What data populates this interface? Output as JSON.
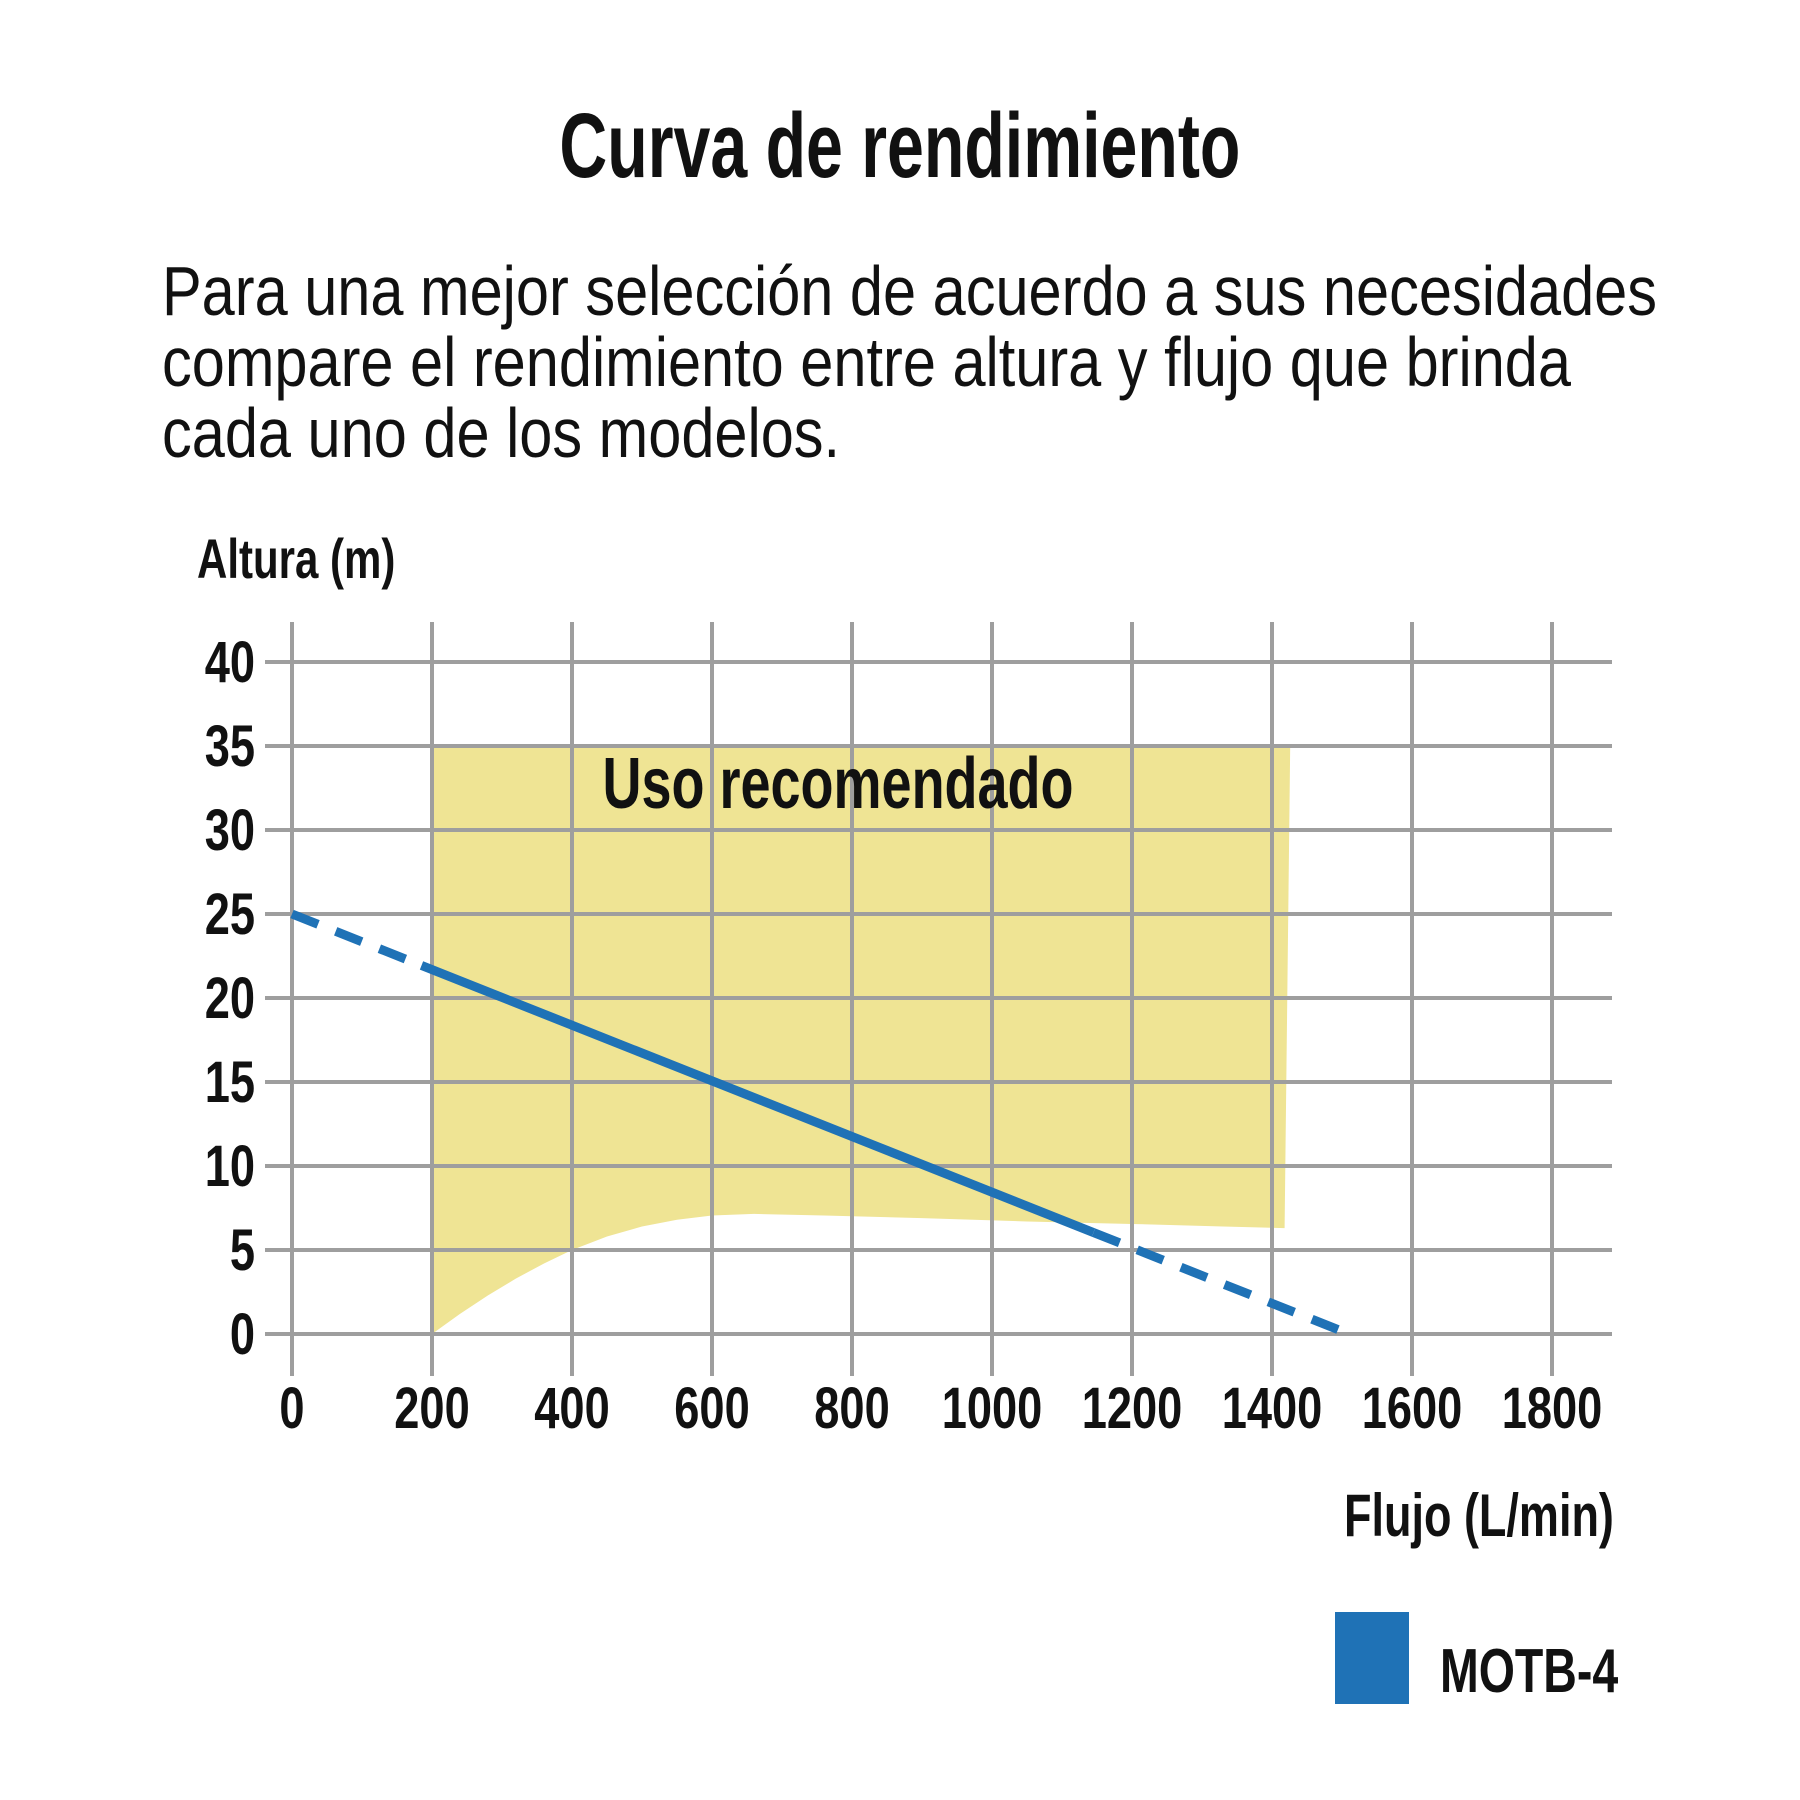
{
  "page": {
    "title": "Curva de rendimiento",
    "description_lines": [
      "Para una mejor selección de acuerdo a sus necesidades",
      "compare el rendimiento entre altura y flujo que brinda",
      "cada uno de los modelos."
    ]
  },
  "chart_data": {
    "type": "area+line",
    "title": "Curva de rendimiento",
    "xlabel": "Flujo (L/min)",
    "ylabel": "Altura (m)",
    "xlim": [
      0,
      1800
    ],
    "ylim": [
      0,
      40
    ],
    "x_ticks": [
      0,
      200,
      400,
      600,
      800,
      1000,
      1200,
      1400,
      1600,
      1800
    ],
    "y_ticks": [
      0,
      5,
      10,
      15,
      20,
      25,
      30,
      35,
      40
    ],
    "grid": true,
    "grid_color": "#9e9e9e",
    "text_color": "#111111",
    "recommended_region": {
      "label": "Uso recomendado",
      "color": "#efe494",
      "label_anchor": {
        "flow": 780,
        "altura": 31.3
      },
      "points": [
        [
          200,
          0
        ],
        [
          240,
          1.2
        ],
        [
          280,
          2.3
        ],
        [
          320,
          3.3
        ],
        [
          360,
          4.2
        ],
        [
          400,
          5.0
        ],
        [
          450,
          5.8
        ],
        [
          500,
          6.4
        ],
        [
          550,
          6.8
        ],
        [
          600,
          7.05
        ],
        [
          660,
          7.15
        ],
        [
          760,
          7.05
        ],
        [
          900,
          6.9
        ],
        [
          1050,
          6.7
        ],
        [
          1200,
          6.55
        ],
        [
          1330,
          6.4
        ],
        [
          1418,
          6.3
        ],
        [
          1426,
          35
        ],
        [
          200,
          35
        ]
      ]
    },
    "series": [
      {
        "name": "MOTB-4",
        "color": "#1f72b6",
        "segments": [
          {
            "style": "dashed",
            "points": [
              [
                0,
                25
              ],
              [
                185,
                21.94
              ]
            ]
          },
          {
            "style": "solid",
            "points": [
              [
                185,
                21.94
              ],
              [
                1145,
                6.04
              ]
            ]
          },
          {
            "style": "dashed",
            "points": [
              [
                1145,
                6.04
              ],
              [
                1500,
                0.17
              ]
            ]
          }
        ]
      }
    ],
    "legend": [
      {
        "label": "MOTB-4",
        "color": "#1f72b6"
      }
    ]
  }
}
